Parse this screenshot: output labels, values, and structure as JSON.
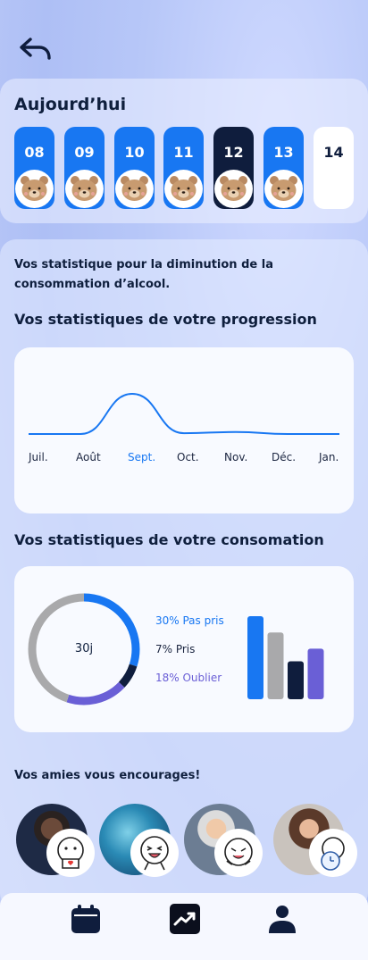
{
  "header": {
    "back_icon": "back-arrow-icon"
  },
  "today": {
    "title": "Aujourd’hui",
    "days": [
      {
        "label": "08",
        "state": "done"
      },
      {
        "label": "09",
        "state": "done"
      },
      {
        "label": "10",
        "state": "done"
      },
      {
        "label": "11",
        "state": "done"
      },
      {
        "label": "12",
        "state": "selected"
      },
      {
        "label": "13",
        "state": "done"
      },
      {
        "label": "14",
        "state": "empty"
      }
    ]
  },
  "stats": {
    "intro": "Vos statistique pour la diminution de la consommation d’alcool.",
    "progress_title": "Vos statistiques de votre progression",
    "consumption_title": "Vos statistiques de votre consomation"
  },
  "chart_data": [
    {
      "type": "line",
      "categories": [
        "Juil.",
        "Août",
        "Sept.",
        "Oct.",
        "Nov.",
        "Déc.",
        "Jan."
      ],
      "highlight_category": "Sept.",
      "series": [
        {
          "values": [
            0,
            0,
            1.0,
            0.02,
            0.05,
            0,
            0
          ],
          "color": "#1877f2"
        }
      ]
    },
    {
      "type": "pie",
      "center_label": "30j",
      "labels": [
        "30% Pas pris",
        "7% Pris",
        "18% Oublier"
      ],
      "label_colors": [
        "#1877f2",
        "#1b2540",
        "#6a5fd6"
      ],
      "slices": [
        {
          "percent": 30,
          "color": "#1877f2"
        },
        {
          "percent": 7,
          "color": "#0f1d3d"
        },
        {
          "percent": 18,
          "color": "#6a5fd6"
        },
        {
          "percent": 45,
          "color": "#a9a9ab"
        }
      ]
    },
    {
      "type": "bar",
      "values": [
        92,
        74,
        42,
        56
      ],
      "colors": [
        "#1877f2",
        "#a9a9ab",
        "#0f1d3d",
        "#6a5fd6"
      ]
    }
  ],
  "friends": {
    "title": "Vos amies vous encourages!",
    "items": [
      {
        "sticker": "heart-cup-sticker"
      },
      {
        "sticker": "cheering-sticker"
      },
      {
        "sticker": "laughing-sticker"
      },
      {
        "sticker": "clock-sticker"
      }
    ]
  },
  "nav": {
    "items": [
      {
        "icon": "calendar-icon",
        "active": false
      },
      {
        "icon": "trending-up-icon",
        "active": true
      },
      {
        "icon": "profile-icon",
        "active": false
      }
    ]
  }
}
